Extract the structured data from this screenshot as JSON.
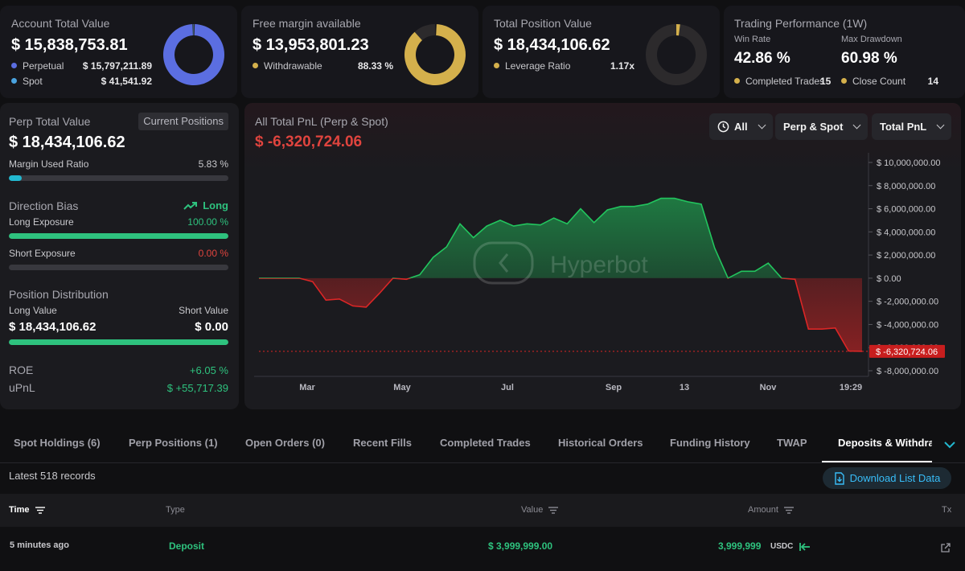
{
  "summary": {
    "account": {
      "title": "Account Total Value",
      "value": "$ 15,838,753.81",
      "rows": [
        {
          "label": "Perpetual",
          "value": "$ 15,797,211.89",
          "color": "#5b6ee1"
        },
        {
          "label": "Spot",
          "value": "$ 41,541.92",
          "color": "#4aa3df"
        }
      ],
      "donut": [
        {
          "share": 0.9974,
          "color": "#5b6ee1"
        },
        {
          "share": 0.0026,
          "color": "#4aa3df"
        }
      ]
    },
    "margin": {
      "title": "Free margin available",
      "value": "$ 13,953,801.23",
      "row_label": "Withdrawable",
      "row_value": "88.33 %",
      "color": "#d4b04c",
      "fill": 0.8833
    },
    "position": {
      "title": "Total Position Value",
      "value": "$ 18,434,106.62",
      "row_label": "Leverage Ratio",
      "row_value": "1.17x",
      "color": "#d4b04c",
      "fill": 0.02
    },
    "performance": {
      "title": "Trading Performance (1W)",
      "win_rate_label": "Win Rate",
      "win_rate": "42.86 %",
      "drawdown_label": "Max Drawdown",
      "drawdown": "60.98 %",
      "completed_label": "Completed Trades",
      "completed": "15",
      "close_label": "Close Count",
      "close": "14",
      "color": "#d4b04c"
    }
  },
  "perp": {
    "title": "Perp Total Value",
    "tag": "Current Positions",
    "value": "$ 18,434,106.62",
    "margin_label": "Margin Used Ratio",
    "margin_value": "5.83 %",
    "margin_fill": 0.0583,
    "bias_label": "Direction Bias",
    "bias_value": "Long",
    "long_label": "Long Exposure",
    "long_value": "100.00 %",
    "long_fill": 1.0,
    "short_label": "Short Exposure",
    "short_value": "0.00 %",
    "short_fill": 0.0,
    "dist_title": "Position Distribution",
    "long_value_label": "Long Value",
    "short_value_label": "Short Value",
    "long_amount": "$ 18,434,106.62",
    "short_amount": "$ 0.00",
    "dist_fill": 1.0,
    "roe_label": "ROE",
    "roe_value": "+6.05 %",
    "upnl_label": "uPnL",
    "upnl_value": "$ +55,717.39",
    "colors": {
      "green": "#2ec27e",
      "red": "#e0443e",
      "cyan": "#22b8cf"
    }
  },
  "pnl": {
    "title": "All Total PnL (Perp & Spot)",
    "value": "$ -6,320,724.06",
    "filters": [
      "All",
      "Perp & Spot",
      "Total PnL"
    ],
    "watermark": "Hyperbot",
    "last_label": "$ -6,320,724.06"
  },
  "chart_data": {
    "type": "area",
    "title": "All Total PnL (Perp & Spot)",
    "x_ticks": [
      "Mar",
      "May",
      "Jul",
      "Sep",
      "13",
      "Nov",
      "19:29"
    ],
    "y_ticks": [
      "$ 10,000,000.00",
      "$ 8,000,000.00",
      "$ 6,000,000.00",
      "$ 4,000,000.00",
      "$ 2,000,000.00",
      "$ 0.00",
      "$ -2,000,000.00",
      "$ -4,000,000.00",
      "$ -6,000,000.00",
      "$ -8,000,000.00"
    ],
    "y_tick_values": [
      10000000,
      8000000,
      6000000,
      4000000,
      2000000,
      0,
      -2000000,
      -4000000,
      -6000000,
      -8000000
    ],
    "ylim": [
      -8000000,
      10000000
    ],
    "series": [
      {
        "y": [
          0,
          0,
          0,
          0,
          -300000,
          -1900000,
          -1800000,
          -2400000,
          -2500000,
          -1300000,
          0,
          -100000,
          300000,
          1800000,
          2700000,
          4700000,
          3500000,
          4500000,
          5000000,
          4500000,
          4700000,
          4600000,
          5200000,
          4700000,
          6000000,
          4800000,
          5900000,
          6200000,
          6200000,
          6400000,
          6900000,
          6900000,
          6600000,
          6400000,
          2600000,
          0,
          600000,
          600000,
          1300000,
          0,
          -100000,
          -4400000,
          -4400000,
          -4300000,
          -6300000,
          -6320724
        ]
      }
    ],
    "positive_color": "#22c55e",
    "negative_color": "#dc2626",
    "grid": false
  },
  "tabs": {
    "items": [
      "Spot Holdings (6)",
      "Perp Positions (1)",
      "Open Orders (0)",
      "Recent Fills",
      "Completed Trades",
      "Historical Orders",
      "Funding History",
      "TWAP",
      "Deposits & Withdraw"
    ],
    "active": 8
  },
  "records": {
    "label": "Latest 518 records",
    "download": "Download List Data"
  },
  "table": {
    "headers": [
      "Time",
      "Type",
      "Value",
      "Amount",
      "Tx"
    ],
    "rows": [
      {
        "time": "5 minutes ago",
        "type": "Deposit",
        "value": "$ 3,999,999.00",
        "amount": "3,999,999",
        "unit": "USDC"
      }
    ]
  }
}
